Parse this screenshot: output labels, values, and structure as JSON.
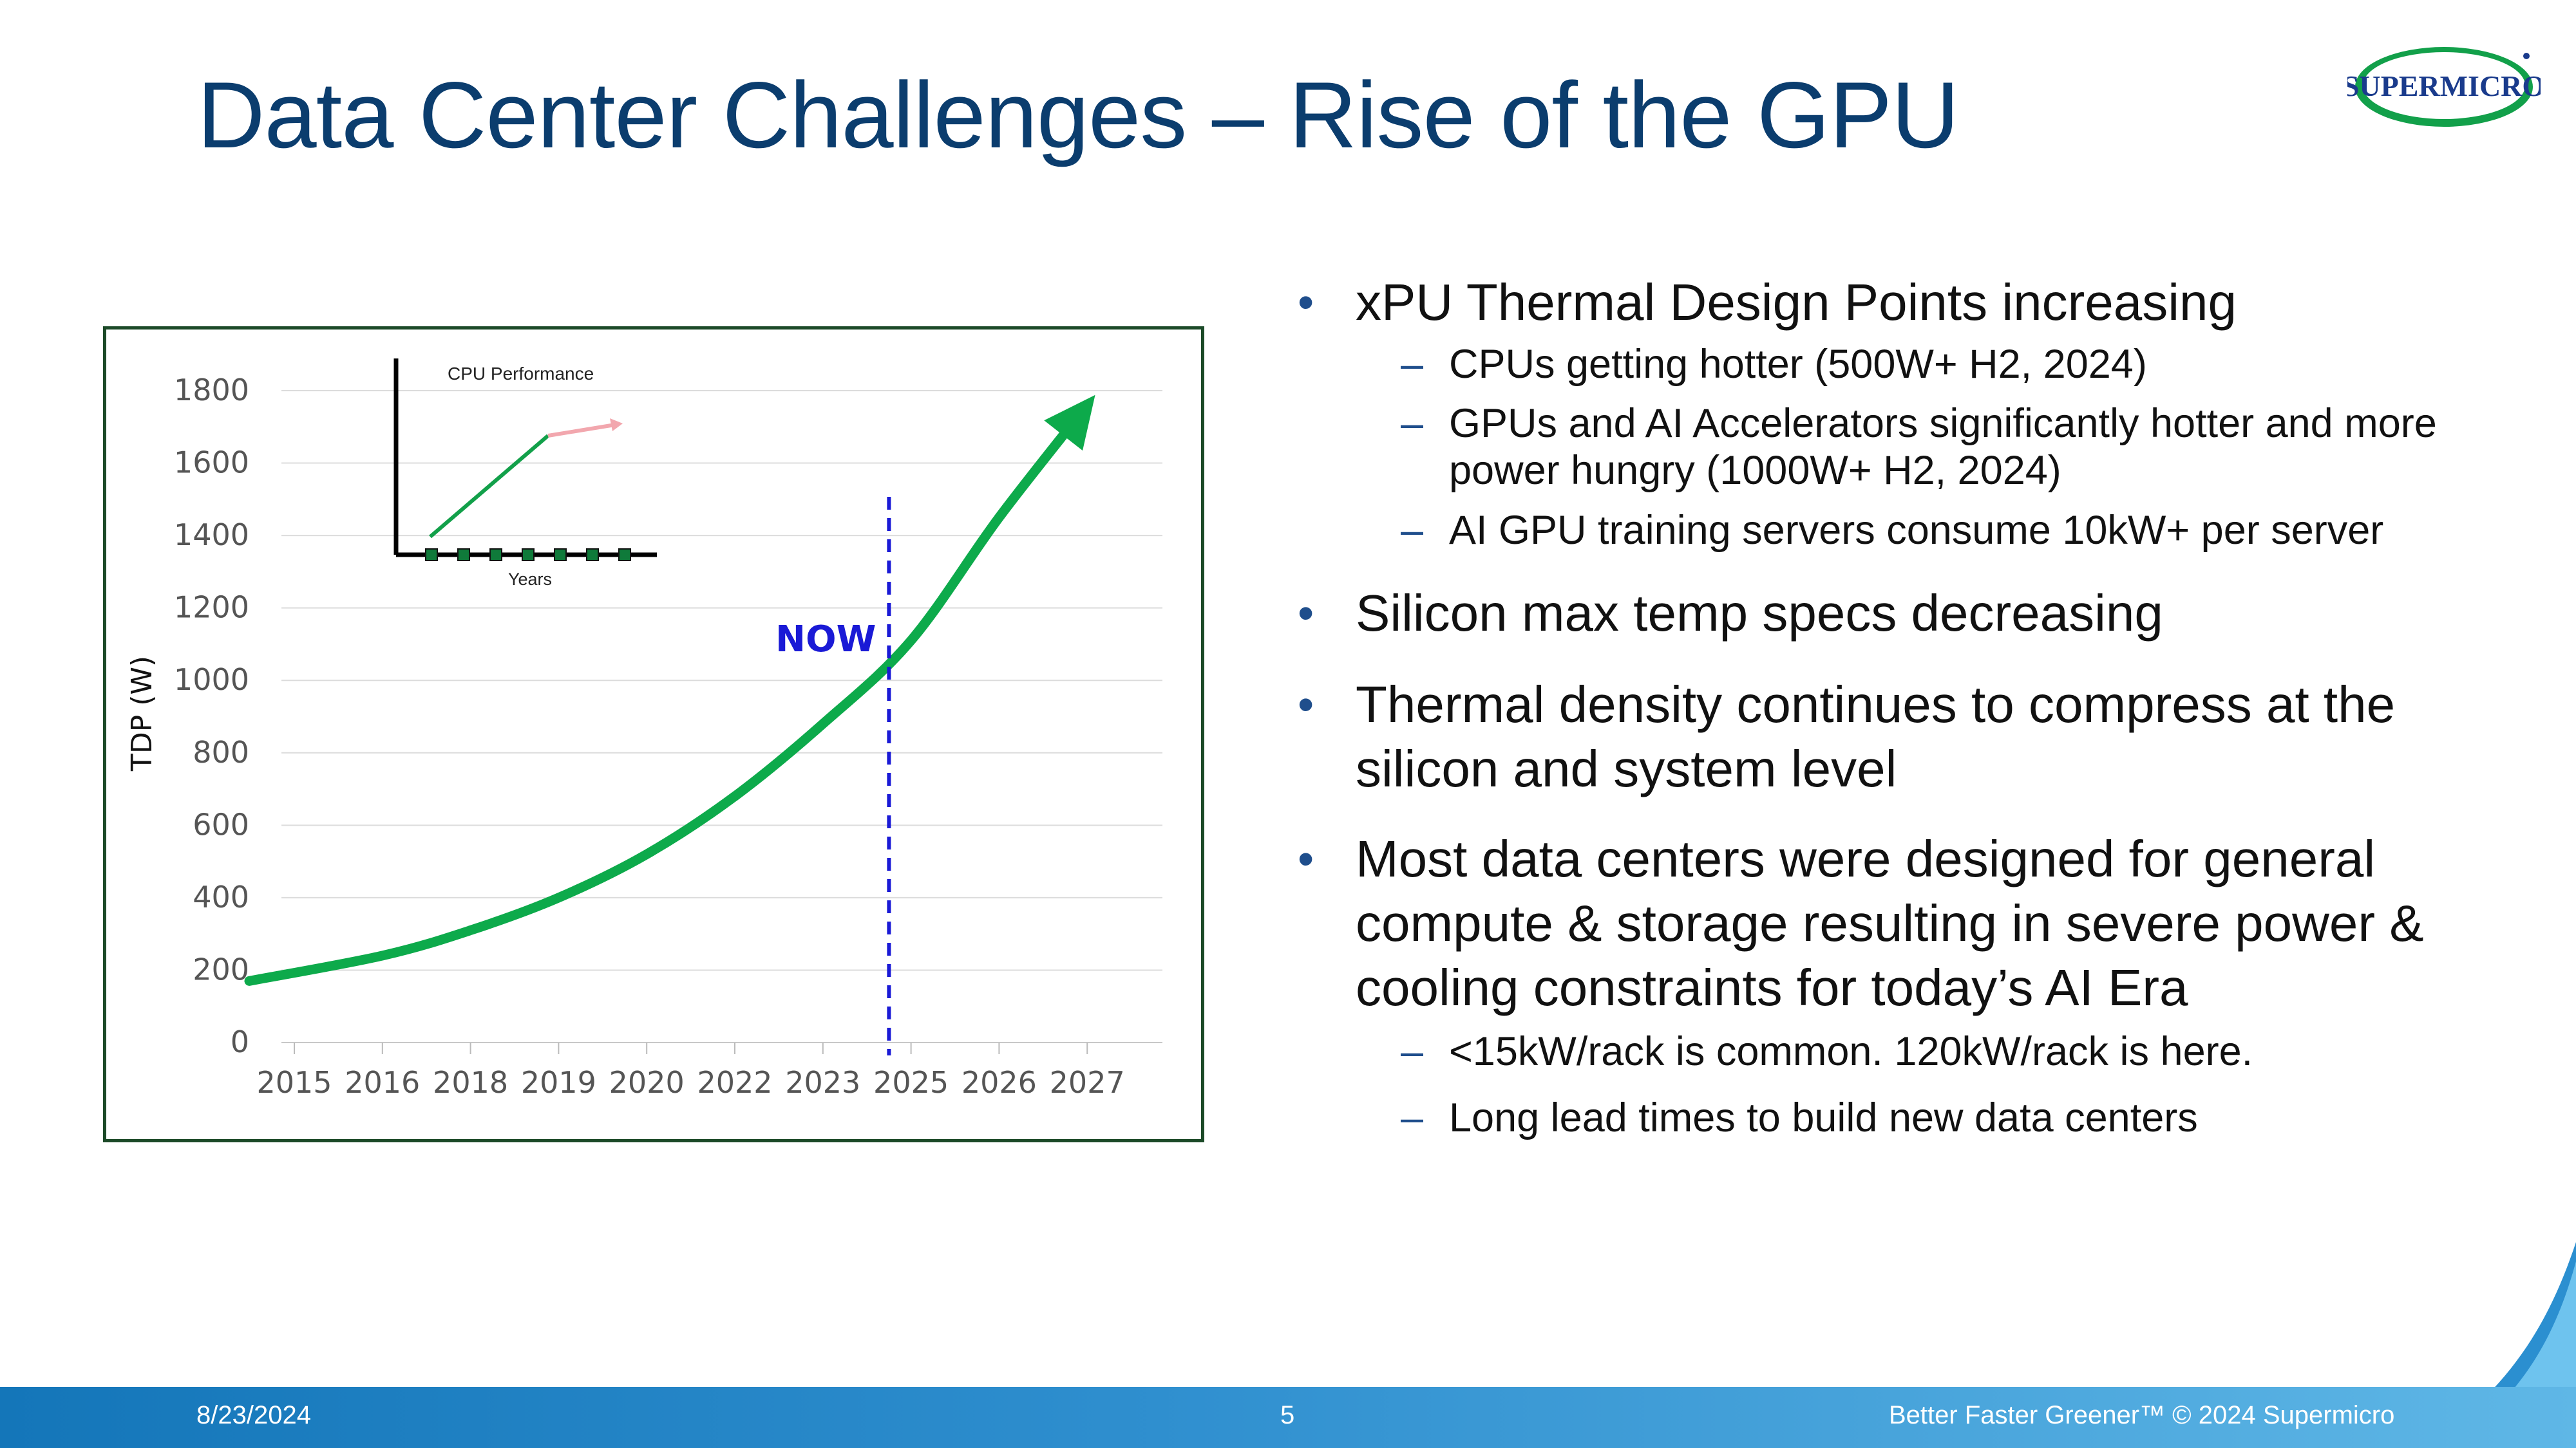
{
  "slide": {
    "title": "Data Center Challenges – Rise of the GPU",
    "logo_text": "SUPERMICRO"
  },
  "bullets": [
    {
      "text": "xPU Thermal Design Points increasing",
      "level": 1
    },
    {
      "text": "CPUs getting hotter (500W+ H2, 2024)",
      "level": 2
    },
    {
      "text": "GPUs and AI Accelerators significantly hotter and more power hungry (1000W+ H2, 2024)",
      "level": 2
    },
    {
      "text": "AI GPU training servers consume 10kW+ per server",
      "level": 2
    },
    {
      "text": "Silicon max temp specs decreasing",
      "level": 1
    },
    {
      "text": "Thermal density continues to compress at the silicon and system level",
      "level": 1
    },
    {
      "text": "Most data centers were designed for general compute & storage resulting in severe power & cooling constraints for today’s AI Era",
      "level": 1
    },
    {
      "text": "<15kW/rack is common.  120kW/rack is here.",
      "level": 2
    },
    {
      "text": "Long lead times to build new data centers",
      "level": 2
    }
  ],
  "footer": {
    "date": "8/23/2024",
    "page_number": "5",
    "tagline": "Better Faster Greener™  © 2024 Supermicro"
  },
  "colors": {
    "title": "#0b3d6e",
    "curve": "#0daa4b",
    "now_marker": "#1a1ad6",
    "footer": "#1f86c8"
  },
  "chart_data": {
    "type": "line",
    "ylabel": "TDP (W)",
    "xlabel": "",
    "categories": [
      "2015",
      "2016",
      "2018",
      "2019",
      "2020",
      "2022",
      "2023",
      "2025",
      "2026",
      "2027"
    ],
    "ylim": [
      0,
      1800
    ],
    "yticks": [
      0,
      200,
      400,
      600,
      800,
      1000,
      1200,
      1400,
      1600,
      1800
    ],
    "grid": true,
    "series": [
      {
        "values": [
          170,
          240,
          310,
          400,
          520,
          680,
          880,
          1110,
          1450,
          1760
        ]
      }
    ],
    "annotation": {
      "label": "NOW",
      "between": [
        "2023",
        "2025"
      ],
      "position": 0.75
    },
    "inset": {
      "title": "CPU Performance",
      "xlabel": "Years"
    }
  }
}
